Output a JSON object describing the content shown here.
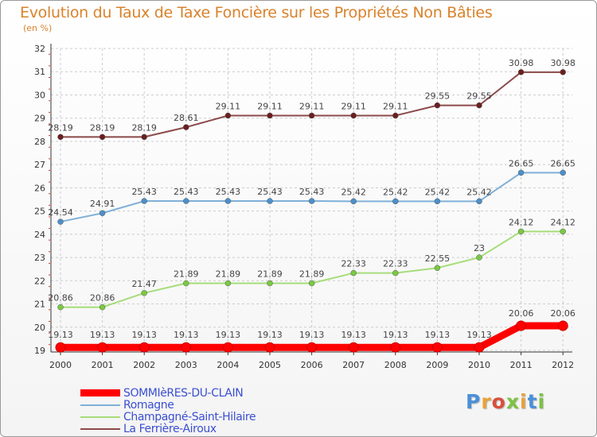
{
  "title": "Evolution du Taux de Taxe Foncière sur les Propriétés Non Bâties",
  "unit": "(en %)",
  "logo": {
    "text": "Proxiti",
    "colors": [
      "#4a90d9",
      "#e8a23a",
      "#d94f3d",
      "#7dc242",
      "#e8a23a",
      "#4a90d9",
      "#7dc242"
    ]
  },
  "colors": {
    "title": "#d9822b",
    "grid": "#cccccc",
    "axis": "#333333",
    "legend_text": "#3b4fd1",
    "tick_minor": "#d2372d"
  },
  "chart_data": {
    "type": "line",
    "title": "Evolution du Taux de Taxe Foncière sur les Propriétés Non Bâties",
    "ylabel": "(en %)",
    "xlabel": "",
    "ylim": [
      19,
      32
    ],
    "yticks": [
      "19",
      "20",
      "21",
      "22",
      "23",
      "24",
      "25",
      "26",
      "27",
      "28",
      "29",
      "30",
      "31",
      "32"
    ],
    "categories": [
      "2000",
      "2001",
      "2002",
      "2003",
      "2004",
      "2005",
      "2006",
      "2007",
      "2008",
      "2009",
      "2010",
      "2011",
      "2012"
    ],
    "series": [
      {
        "name": "SOMMIèRES-DU-CLAIN",
        "color": "#ff0000",
        "marker": "#ff0000",
        "width": "thick",
        "values": [
          19.13,
          19.13,
          19.13,
          19.13,
          19.13,
          19.13,
          19.13,
          19.13,
          19.13,
          19.13,
          19.13,
          20.06,
          20.06
        ],
        "labels": [
          "19.13",
          "19.13",
          "19.13",
          "19.13",
          "19.13",
          "19.13",
          "19.13",
          "19.13",
          "19.13",
          "19.13",
          "19.13",
          "20.06",
          "20.06"
        ]
      },
      {
        "name": "Romagne",
        "color": "#7fb0d8",
        "marker": "#4d8fc9",
        "width": "thin",
        "values": [
          24.54,
          24.91,
          25.43,
          25.43,
          25.43,
          25.43,
          25.43,
          25.42,
          25.42,
          25.42,
          25.42,
          26.65,
          26.65
        ],
        "labels": [
          "24.54",
          "24.91",
          "25.43",
          "25.43",
          "25.43",
          "25.43",
          "25.43",
          "25.42",
          "25.42",
          "25.42",
          "25.42",
          "26.65",
          "26.65"
        ]
      },
      {
        "name": "Champagné-Saint-Hilaire",
        "color": "#a6dd7a",
        "marker": "#7ac943",
        "width": "thin",
        "values": [
          20.86,
          20.86,
          21.47,
          21.89,
          21.89,
          21.89,
          21.89,
          22.33,
          22.33,
          22.55,
          23,
          24.12,
          24.12
        ],
        "labels": [
          "20.86",
          "20.86",
          "21.47",
          "21.89",
          "21.89",
          "21.89",
          "21.89",
          "22.33",
          "22.33",
          "22.55",
          "23",
          "24.12",
          "24.12"
        ]
      },
      {
        "name": "La Ferrière-Airoux",
        "color": "#8c4a4a",
        "marker": "#6b1f1f",
        "width": "thin",
        "values": [
          28.19,
          28.19,
          28.19,
          28.61,
          29.11,
          29.11,
          29.11,
          29.11,
          29.11,
          29.55,
          29.55,
          30.98,
          30.98
        ],
        "labels": [
          "28.19",
          "28.19",
          "28.19",
          "28.61",
          "29.11",
          "29.11",
          "29.11",
          "29.11",
          "29.11",
          "29.55",
          "29.55",
          "30.98",
          "30.98"
        ]
      }
    ]
  }
}
